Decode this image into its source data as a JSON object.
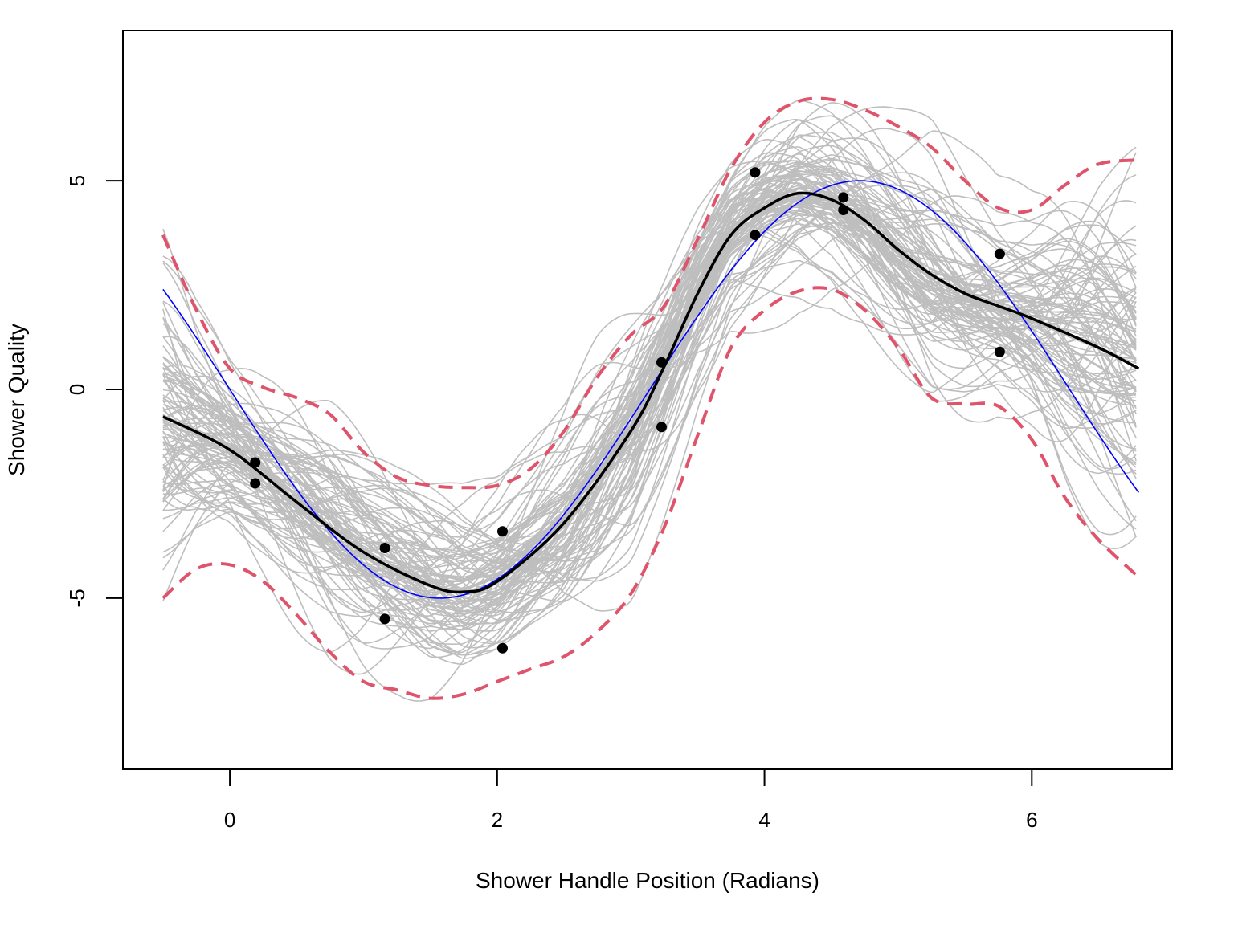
{
  "chart_data": {
    "type": "line",
    "title": "",
    "xlabel": "Shower Handle Position (Radians)",
    "ylabel": "Shower Quality",
    "xlim": [
      -0.8,
      7.05
    ],
    "ylim": [
      -9.1,
      8.6
    ],
    "x_ticks": [
      0,
      2,
      4,
      6
    ],
    "y_ticks": [
      -5,
      0,
      5
    ],
    "grid": false,
    "legend": "none",
    "colors": {
      "samples": "#BEBEBE",
      "true_function": "#0000FF",
      "mean": "#000000",
      "band": "#DF536B",
      "points": "#000000",
      "axes": "#000000"
    },
    "x_range": [
      -0.5,
      6.8
    ],
    "true_function": {
      "formula": "5*sin(x + pi)",
      "line": "solid"
    },
    "mean_curve": {
      "x": [
        -0.5,
        0,
        0.5,
        1,
        1.5,
        1.75,
        2,
        2.5,
        3,
        3.25,
        3.5,
        3.75,
        4,
        4.25,
        4.5,
        4.75,
        5,
        5.25,
        5.5,
        5.75,
        6,
        6.5,
        6.8
      ],
      "y": [
        -0.65,
        -1.45,
        -2.7,
        -3.9,
        -4.7,
        -4.85,
        -4.6,
        -3.2,
        -1.0,
        0.55,
        2.3,
        3.7,
        4.35,
        4.7,
        4.55,
        4.05,
        3.35,
        2.75,
        2.3,
        2.0,
        1.7,
        1.0,
        0.5
      ]
    },
    "band_upper": {
      "x": [
        -0.5,
        -0.25,
        0,
        0.25,
        0.5,
        0.75,
        1,
        1.25,
        1.5,
        1.75,
        2,
        2.25,
        2.5,
        2.75,
        3,
        3.25,
        3.5,
        3.75,
        4,
        4.25,
        4.5,
        4.75,
        5,
        5.25,
        5.5,
        5.75,
        6,
        6.25,
        6.5,
        6.8
      ],
      "y": [
        3.7,
        1.9,
        0.5,
        0.05,
        -0.2,
        -0.6,
        -1.5,
        -2.1,
        -2.3,
        -2.35,
        -2.3,
        -1.9,
        -1.0,
        0.3,
        1.3,
        2.0,
        3.6,
        5.3,
        6.4,
        6.9,
        6.95,
        6.7,
        6.3,
        5.8,
        5.0,
        4.35,
        4.3,
        4.9,
        5.4,
        5.5
      ]
    },
    "band_lower": {
      "x": [
        -0.5,
        -0.25,
        0,
        0.25,
        0.5,
        0.75,
        1,
        1.25,
        1.5,
        1.75,
        2,
        2.25,
        2.5,
        2.75,
        3,
        3.25,
        3.5,
        3.75,
        4,
        4.25,
        4.5,
        4.75,
        5,
        5.25,
        5.5,
        5.75,
        6,
        6.25,
        6.5,
        6.8
      ],
      "y": [
        -5.0,
        -4.3,
        -4.2,
        -4.6,
        -5.4,
        -6.3,
        -7.0,
        -7.2,
        -7.4,
        -7.3,
        -7.0,
        -6.7,
        -6.4,
        -5.8,
        -4.9,
        -3.3,
        -1.1,
        1.0,
        1.9,
        2.35,
        2.4,
        1.9,
        1.0,
        -0.2,
        -0.35,
        -0.4,
        -1.2,
        -2.6,
        -3.6,
        -4.5
      ]
    },
    "observed_points": {
      "x": [
        0.19,
        0.19,
        1.16,
        1.16,
        2.04,
        2.04,
        3.23,
        3.23,
        3.93,
        3.93,
        4.59,
        4.59,
        5.76,
        5.76
      ],
      "y": [
        -1.75,
        -2.25,
        -3.8,
        -5.5,
        -3.4,
        -6.2,
        0.65,
        -0.9,
        5.2,
        3.7,
        4.6,
        4.3,
        3.25,
        0.9
      ]
    },
    "posterior_samples": {
      "count": 100
    }
  }
}
